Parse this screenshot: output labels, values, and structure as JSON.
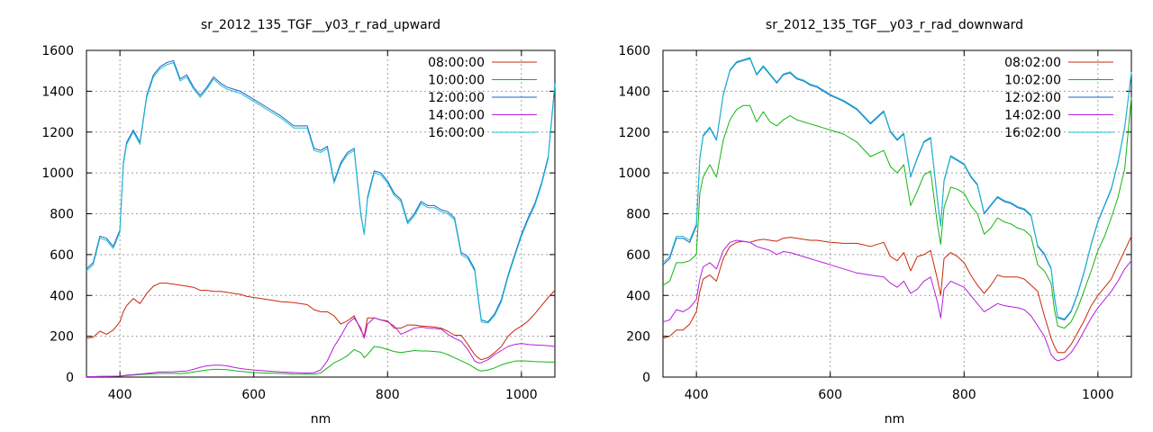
{
  "colors": {
    "08": "#c8280a",
    "10": "#14b414",
    "12": "#1464c8",
    "14": "#b41edc",
    "16": "#1ebed2"
  },
  "chart_data": [
    {
      "type": "line",
      "title": "sr_2012_135_TGF__y03_r_rad_upward",
      "xlabel": "nm",
      "ylabel": "",
      "xlim": [
        350,
        1050
      ],
      "ylim": [
        0,
        1600
      ],
      "xticks": [
        "400",
        "600",
        "800",
        "1000"
      ],
      "yticks": [
        "0",
        "200",
        "400",
        "600",
        "800",
        "1000",
        "1200",
        "1400",
        "1600"
      ],
      "grid": true,
      "legend_position": "top-right",
      "x": [
        350,
        360,
        370,
        380,
        390,
        400,
        405,
        410,
        420,
        430,
        440,
        450,
        460,
        470,
        480,
        490,
        500,
        510,
        520,
        530,
        540,
        550,
        560,
        570,
        580,
        590,
        600,
        620,
        640,
        660,
        680,
        690,
        700,
        710,
        720,
        730,
        740,
        750,
        760,
        765,
        770,
        780,
        790,
        800,
        810,
        820,
        830,
        840,
        850,
        860,
        870,
        880,
        890,
        900,
        910,
        920,
        930,
        935,
        940,
        950,
        960,
        970,
        980,
        990,
        1000,
        1010,
        1020,
        1030,
        1040,
        1050
      ],
      "series": [
        {
          "name": "08:00:00",
          "color_key": "08",
          "values": [
            190,
            195,
            225,
            210,
            230,
            270,
            320,
            350,
            385,
            360,
            410,
            445,
            460,
            460,
            455,
            450,
            445,
            440,
            425,
            425,
            420,
            420,
            415,
            410,
            405,
            395,
            390,
            380,
            370,
            365,
            355,
            330,
            320,
            320,
            300,
            260,
            275,
            300,
            230,
            200,
            290,
            290,
            280,
            275,
            240,
            240,
            255,
            255,
            250,
            248,
            245,
            240,
            225,
            205,
            205,
            160,
            110,
            95,
            85,
            95,
            120,
            150,
            200,
            230,
            250,
            275,
            310,
            350,
            390,
            425
          ]
        },
        {
          "name": "10:00:00",
          "color_key": "10",
          "values": [
            2,
            2,
            3,
            3,
            4,
            5,
            6,
            8,
            10,
            12,
            14,
            16,
            18,
            18,
            18,
            17,
            20,
            25,
            30,
            35,
            38,
            38,
            36,
            32,
            28,
            25,
            22,
            20,
            18,
            15,
            14,
            14,
            20,
            45,
            70,
            85,
            105,
            135,
            120,
            95,
            110,
            150,
            145,
            135,
            125,
            120,
            125,
            130,
            128,
            128,
            125,
            122,
            110,
            95,
            80,
            65,
            45,
            35,
            30,
            35,
            45,
            60,
            70,
            78,
            80,
            78,
            76,
            75,
            74,
            73
          ]
        },
        {
          "name": "12:00:00",
          "color_key": "12",
          "values": [
            530,
            560,
            690,
            680,
            640,
            720,
            1050,
            1150,
            1210,
            1150,
            1380,
            1480,
            1520,
            1540,
            1550,
            1460,
            1480,
            1420,
            1380,
            1420,
            1470,
            1440,
            1420,
            1410,
            1400,
            1380,
            1360,
            1320,
            1280,
            1230,
            1230,
            1120,
            1110,
            1130,
            960,
            1050,
            1100,
            1120,
            800,
            700,
            880,
            1010,
            1000,
            960,
            900,
            870,
            760,
            800,
            860,
            840,
            840,
            820,
            810,
            780,
            610,
            590,
            530,
            400,
            280,
            270,
            310,
            380,
            500,
            600,
            700,
            780,
            850,
            950,
            1080,
            1440
          ]
        },
        {
          "name": "14:00:00",
          "color_key": "14",
          "values": [
            2,
            2,
            3,
            3,
            4,
            5,
            7,
            10,
            12,
            15,
            18,
            22,
            25,
            25,
            26,
            28,
            30,
            38,
            48,
            55,
            58,
            58,
            55,
            48,
            42,
            38,
            35,
            30,
            25,
            22,
            20,
            22,
            35,
            80,
            150,
            200,
            260,
            290,
            240,
            190,
            260,
            290,
            280,
            270,
            250,
            210,
            225,
            240,
            245,
            240,
            238,
            235,
            210,
            190,
            175,
            135,
            80,
            70,
            70,
            85,
            110,
            130,
            150,
            160,
            165,
            160,
            158,
            156,
            154,
            150
          ]
        },
        {
          "name": "16:00:00",
          "color_key": "16",
          "values": [
            520,
            550,
            680,
            670,
            630,
            710,
            1040,
            1140,
            1200,
            1140,
            1370,
            1470,
            1510,
            1530,
            1540,
            1450,
            1470,
            1410,
            1370,
            1410,
            1460,
            1430,
            1410,
            1400,
            1390,
            1370,
            1350,
            1310,
            1270,
            1220,
            1220,
            1110,
            1100,
            1120,
            950,
            1040,
            1090,
            1110,
            790,
            700,
            870,
            1000,
            990,
            950,
            890,
            860,
            750,
            790,
            850,
            830,
            830,
            810,
            800,
            770,
            600,
            580,
            520,
            390,
            270,
            265,
            300,
            370,
            490,
            590,
            690,
            770,
            840,
            940,
            1070,
            1430
          ]
        }
      ]
    },
    {
      "type": "line",
      "title": "sr_2012_135_TGF__y03_r_rad_downward",
      "xlabel": "nm",
      "ylabel": "",
      "xlim": [
        350,
        1050
      ],
      "ylim": [
        0,
        1600
      ],
      "xticks": [
        "400",
        "600",
        "800",
        "1000"
      ],
      "yticks": [
        "0",
        "200",
        "400",
        "600",
        "800",
        "1000",
        "1200",
        "1400",
        "1600"
      ],
      "grid": true,
      "legend_position": "top-right",
      "x": [
        350,
        360,
        370,
        380,
        390,
        400,
        405,
        410,
        420,
        430,
        440,
        450,
        460,
        470,
        480,
        490,
        500,
        510,
        520,
        530,
        540,
        550,
        560,
        570,
        580,
        590,
        600,
        620,
        640,
        660,
        680,
        690,
        700,
        710,
        720,
        730,
        740,
        750,
        760,
        765,
        770,
        780,
        790,
        800,
        810,
        820,
        830,
        840,
        850,
        860,
        870,
        880,
        890,
        900,
        910,
        920,
        930,
        935,
        940,
        950,
        960,
        970,
        980,
        990,
        1000,
        1010,
        1020,
        1030,
        1040,
        1050
      ],
      "series": [
        {
          "name": "08:02:00",
          "color_key": "08",
          "values": [
            190,
            200,
            230,
            230,
            260,
            320,
            420,
            480,
            500,
            470,
            580,
            640,
            660,
            665,
            660,
            670,
            675,
            670,
            665,
            680,
            685,
            680,
            675,
            670,
            670,
            665,
            660,
            655,
            655,
            640,
            660,
            590,
            570,
            610,
            520,
            590,
            600,
            620,
            480,
            400,
            580,
            610,
            590,
            560,
            500,
            450,
            410,
            450,
            500,
            490,
            490,
            490,
            480,
            450,
            420,
            300,
            190,
            150,
            120,
            120,
            160,
            220,
            280,
            350,
            400,
            440,
            480,
            550,
            620,
            690
          ]
        },
        {
          "name": "10:02:00",
          "color_key": "10",
          "values": [
            450,
            470,
            560,
            560,
            570,
            600,
            900,
            980,
            1040,
            980,
            1160,
            1260,
            1310,
            1330,
            1330,
            1250,
            1300,
            1250,
            1230,
            1260,
            1280,
            1260,
            1250,
            1240,
            1230,
            1220,
            1210,
            1190,
            1150,
            1080,
            1110,
            1030,
            1000,
            1040,
            840,
            910,
            990,
            1010,
            750,
            650,
            830,
            930,
            920,
            900,
            840,
            800,
            700,
            730,
            780,
            760,
            750,
            730,
            720,
            690,
            550,
            520,
            460,
            330,
            250,
            240,
            270,
            340,
            430,
            520,
            620,
            690,
            780,
            880,
            1020,
            1370
          ]
        },
        {
          "name": "12:02:00",
          "color_key": "12",
          "values": [
            550,
            580,
            680,
            680,
            660,
            740,
            1070,
            1180,
            1220,
            1160,
            1380,
            1500,
            1540,
            1550,
            1560,
            1480,
            1520,
            1480,
            1440,
            1480,
            1490,
            1460,
            1450,
            1430,
            1420,
            1400,
            1380,
            1350,
            1310,
            1240,
            1300,
            1200,
            1160,
            1190,
            980,
            1070,
            1150,
            1170,
            870,
            740,
            960,
            1080,
            1060,
            1040,
            980,
            940,
            800,
            840,
            880,
            860,
            850,
            830,
            820,
            790,
            640,
            600,
            530,
            390,
            290,
            280,
            320,
            410,
            520,
            650,
            760,
            840,
            920,
            1050,
            1220,
            1490
          ]
        },
        {
          "name": "14:02:00",
          "color_key": "14",
          "values": [
            270,
            280,
            330,
            320,
            340,
            380,
            480,
            540,
            560,
            530,
            620,
            660,
            670,
            665,
            660,
            640,
            630,
            620,
            600,
            615,
            610,
            600,
            590,
            580,
            570,
            560,
            550,
            530,
            510,
            500,
            490,
            460,
            440,
            470,
            410,
            430,
            470,
            490,
            370,
            290,
            430,
            470,
            455,
            440,
            400,
            360,
            320,
            340,
            360,
            350,
            345,
            340,
            330,
            300,
            250,
            200,
            110,
            90,
            80,
            90,
            120,
            170,
            230,
            290,
            340,
            380,
            420,
            470,
            530,
            570
          ]
        },
        {
          "name": "16:02:00",
          "color_key": "16",
          "values": [
            560,
            590,
            690,
            690,
            670,
            750,
            1075,
            1185,
            1225,
            1165,
            1385,
            1505,
            1545,
            1555,
            1565,
            1485,
            1525,
            1485,
            1445,
            1485,
            1495,
            1465,
            1455,
            1435,
            1425,
            1405,
            1385,
            1355,
            1315,
            1245,
            1305,
            1205,
            1165,
            1195,
            985,
            1075,
            1155,
            1175,
            875,
            745,
            965,
            1085,
            1065,
            1045,
            985,
            945,
            805,
            845,
            885,
            865,
            855,
            835,
            825,
            795,
            645,
            605,
            535,
            395,
            295,
            285,
            325,
            415,
            525,
            655,
            765,
            845,
            925,
            1055,
            1225,
            1495
          ]
        }
      ]
    }
  ]
}
